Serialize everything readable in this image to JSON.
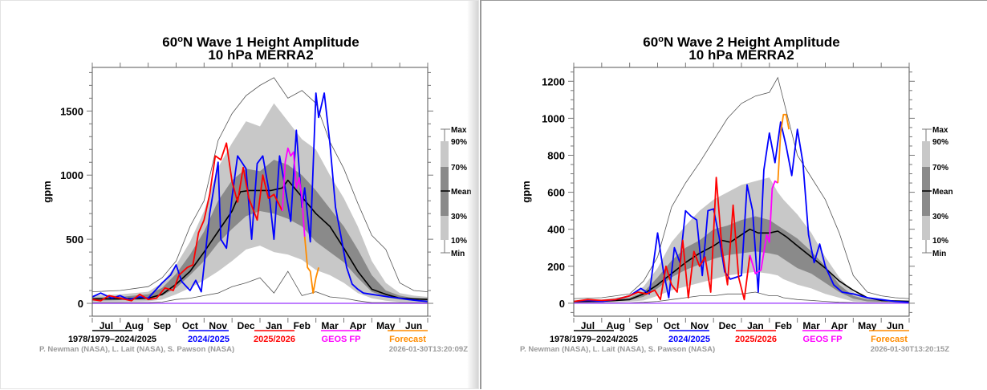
{
  "charts_common": {
    "months": [
      "Jul",
      "Aug",
      "Sep",
      "Oct",
      "Nov",
      "Dec",
      "Jan",
      "Feb",
      "Mar",
      "Apr",
      "May",
      "Jun"
    ],
    "ylabel": "gpm",
    "band_legend": [
      "Max",
      "90%",
      "70%",
      "Mean",
      "30%",
      "10%",
      "Min"
    ],
    "series_legend": [
      {
        "label": "1978/1979–2024/2025",
        "color": "#000000"
      },
      {
        "label": "2024/2025",
        "color": "#0000ff"
      },
      {
        "label": "2025/2026",
        "color": "#ff0000"
      },
      {
        "label": "GEOS FP",
        "color": "#ff00ff"
      },
      {
        "label": "Forecast",
        "color": "#ff8c00"
      }
    ],
    "credit": "P. Newman (NASA), L. Lait (NASA), S. Pawson (NASA)",
    "colors": {
      "band_outer": "#c8c8c8",
      "band_inner": "#8a8a8a",
      "minmax": "#555555",
      "zero_line": "#9933ff"
    }
  },
  "chart_data": [
    {
      "type": "line",
      "title": "60°N Wave 1 Height Amplitude",
      "title_line1_prefix": "60",
      "title_line1_sup": "o",
      "title_line1_rest": "N Wave 1 Height Amplitude",
      "subtitle": "10 hPa   MERRA2",
      "timestamp": "2026-01-30T13:20:09Z",
      "xlabel": "",
      "ylabel": "gpm",
      "xlim": [
        0,
        12
      ],
      "ylim": [
        -100,
        1840
      ],
      "yticks": [
        0,
        500,
        1000,
        1500
      ],
      "yminor_step": 100,
      "x_units": "months since Jul 1",
      "bands": {
        "x": [
          0,
          1,
          2,
          2.5,
          3,
          3.5,
          4,
          4.5,
          5,
          5.5,
          6,
          6.5,
          7,
          7.5,
          8,
          8.5,
          9,
          9.5,
          10,
          10.5,
          11,
          11.5,
          12
        ],
        "max": [
          90,
          100,
          130,
          200,
          330,
          600,
          800,
          1270,
          1480,
          1620,
          1700,
          1760,
          1600,
          1660,
          1560,
          1260,
          1050,
          780,
          530,
          420,
          160,
          100,
          90
        ],
        "p90": [
          60,
          70,
          90,
          160,
          300,
          480,
          720,
          1060,
          1250,
          1420,
          1380,
          1560,
          1420,
          1280,
          1200,
          1000,
          820,
          600,
          330,
          160,
          80,
          60,
          50
        ],
        "p70": [
          45,
          50,
          70,
          120,
          230,
          380,
          560,
          800,
          960,
          1050,
          1030,
          1120,
          1080,
          1000,
          880,
          740,
          600,
          420,
          220,
          100,
          60,
          40,
          40
        ],
        "p30": [
          20,
          25,
          30,
          60,
          120,
          220,
          330,
          470,
          580,
          680,
          720,
          700,
          660,
          600,
          480,
          400,
          320,
          200,
          90,
          50,
          30,
          20,
          20
        ],
        "p10": [
          10,
          10,
          15,
          30,
          70,
          120,
          180,
          250,
          330,
          420,
          450,
          400,
          380,
          340,
          260,
          220,
          160,
          80,
          40,
          20,
          10,
          10,
          10
        ],
        "min": [
          5,
          5,
          5,
          10,
          30,
          40,
          60,
          80,
          130,
          160,
          200,
          80,
          250,
          60,
          90,
          50,
          40,
          20,
          5,
          5,
          5,
          5,
          5
        ]
      },
      "series": [
        {
          "name": "Mean",
          "color": "#000000",
          "x": [
            0,
            1,
            2,
            2.5,
            3,
            3.5,
            4,
            4.5,
            5,
            5.3,
            5.6,
            6,
            6.4,
            6.8,
            7.0,
            7.5,
            8,
            8.5,
            9,
            9.5,
            10,
            10.5,
            11,
            12
          ],
          "values": [
            35,
            35,
            40,
            70,
            150,
            250,
            400,
            560,
            720,
            870,
            880,
            880,
            880,
            900,
            960,
            830,
            700,
            600,
            430,
            250,
            110,
            70,
            40,
            30
          ]
        },
        {
          "name": "2024/2025",
          "color": "#0000ff",
          "x": [
            0,
            0.3,
            0.7,
            1.0,
            1.3,
            1.7,
            2.0,
            2.5,
            2.8,
            3.0,
            3.2,
            3.5,
            3.7,
            3.9,
            4.2,
            4.5,
            4.6,
            4.8,
            5.0,
            5.2,
            5.5,
            5.7,
            5.9,
            6.1,
            6.3,
            6.5,
            6.7,
            6.9,
            7.1,
            7.3,
            7.5,
            7.6,
            7.8,
            8.0,
            8.1,
            8.3,
            8.5,
            8.7,
            8.9,
            9.1,
            9.3,
            9.5,
            9.7,
            10.0,
            10.3,
            10.6,
            11.0,
            11.3,
            11.7,
            12
          ],
          "values": [
            50,
            80,
            40,
            60,
            30,
            50,
            40,
            160,
            220,
            300,
            170,
            100,
            180,
            90,
            700,
            1100,
            500,
            430,
            830,
            1150,
            1050,
            500,
            1090,
            1150,
            900,
            500,
            1150,
            900,
            640,
            1350,
            750,
            900,
            480,
            1640,
            1450,
            1640,
            1250,
            750,
            520,
            280,
            150,
            110,
            80,
            70,
            60,
            50,
            40,
            30,
            20,
            15
          ]
        },
        {
          "name": "2025/2026",
          "color": "#ff0000",
          "x": [
            0,
            0.3,
            0.6,
            1.0,
            1.4,
            1.7,
            2.0,
            2.3,
            2.6,
            2.9,
            3.1,
            3.4,
            3.6,
            3.8,
            4.0,
            4.2,
            4.4,
            4.6,
            4.8,
            5.0,
            5.2,
            5.4,
            5.6,
            5.9,
            6.1,
            6.3,
            6.5,
            6.8
          ],
          "values": [
            30,
            20,
            60,
            40,
            20,
            70,
            30,
            40,
            120,
            100,
            220,
            280,
            300,
            550,
            650,
            850,
            1150,
            1120,
            1250,
            950,
            790,
            1060,
            820,
            650,
            1000,
            820,
            850,
            720
          ]
        },
        {
          "name": "GEOS FP",
          "color": "#ff00ff",
          "x": [
            6.8,
            6.9,
            7.0,
            7.1,
            7.2,
            7.3,
            7.4,
            7.5,
            7.6
          ],
          "values": [
            720,
            1100,
            1210,
            1150,
            1180,
            900,
            980,
            820,
            520
          ]
        },
        {
          "name": "Forecast",
          "color": "#ff8c00",
          "x": [
            7.6,
            7.7,
            7.8,
            7.9,
            8.0,
            8.1
          ],
          "values": [
            520,
            280,
            250,
            80,
            200,
            280
          ]
        }
      ]
    },
    {
      "type": "line",
      "title": "60°N Wave 2 Height Amplitude",
      "title_line1_prefix": "60",
      "title_line1_sup": "o",
      "title_line1_rest": "N Wave 2 Height Amplitude",
      "subtitle": "10 hPa   MERRA2",
      "timestamp": "2026-01-30T13:20:15Z",
      "xlabel": "",
      "ylabel": "gpm",
      "xlim": [
        0,
        12
      ],
      "ylim": [
        -70,
        1275
      ],
      "yticks": [
        0,
        200,
        400,
        600,
        800,
        1000,
        1200
      ],
      "yminor_step": 50,
      "x_units": "months since Jul 1",
      "bands": {
        "x": [
          0,
          1,
          2,
          2.5,
          3,
          3.5,
          4,
          4.5,
          5,
          5.5,
          6,
          6.5,
          7,
          7.3,
          7.5,
          8,
          8.5,
          9,
          9.5,
          10,
          10.5,
          11,
          11.5,
          12
        ],
        "max": [
          25,
          30,
          50,
          120,
          250,
          520,
          650,
          760,
          880,
          1000,
          1080,
          1120,
          1140,
          1220,
          1100,
          800,
          680,
          560,
          380,
          150,
          60,
          40,
          30,
          25
        ],
        "p90": [
          15,
          20,
          40,
          90,
          190,
          330,
          420,
          500,
          560,
          600,
          640,
          660,
          680,
          600,
          560,
          480,
          380,
          250,
          140,
          60,
          30,
          20,
          15,
          15
        ],
        "p70": [
          10,
          15,
          30,
          60,
          140,
          230,
          300,
          340,
          400,
          420,
          450,
          470,
          450,
          420,
          400,
          350,
          280,
          200,
          100,
          40,
          20,
          15,
          10,
          10
        ],
        "p30": [
          5,
          8,
          15,
          35,
          80,
          140,
          180,
          210,
          240,
          260,
          270,
          280,
          270,
          260,
          240,
          190,
          160,
          110,
          60,
          25,
          10,
          8,
          5,
          5
        ],
        "p10": [
          2,
          3,
          8,
          15,
          40,
          70,
          90,
          110,
          130,
          150,
          160,
          170,
          160,
          150,
          130,
          100,
          80,
          50,
          30,
          10,
          5,
          3,
          2,
          2
        ],
        "min": [
          0,
          1,
          2,
          5,
          10,
          20,
          30,
          40,
          40,
          50,
          50,
          60,
          40,
          40,
          30,
          20,
          15,
          10,
          5,
          3,
          2,
          1,
          0,
          0
        ]
      },
      "series": [
        {
          "name": "Mean",
          "color": "#000000",
          "x": [
            0,
            1,
            2,
            2.5,
            3,
            3.5,
            4,
            4.5,
            5,
            5.3,
            5.6,
            6,
            6.3,
            6.6,
            7,
            7.3,
            7.6,
            8,
            8.5,
            9,
            9.5,
            10,
            10.5,
            11,
            12
          ],
          "values": [
            8,
            10,
            20,
            50,
            100,
            160,
            220,
            270,
            310,
            340,
            330,
            370,
            400,
            380,
            380,
            390,
            360,
            310,
            250,
            190,
            120,
            70,
            30,
            15,
            10
          ]
        },
        {
          "name": "2024/2025",
          "color": "#0000ff",
          "x": [
            0,
            0.5,
            1.0,
            1.5,
            2.0,
            2.4,
            2.7,
            3.0,
            3.2,
            3.4,
            3.6,
            3.8,
            4.0,
            4.2,
            4.4,
            4.6,
            4.8,
            5.0,
            5.2,
            5.4,
            5.6,
            5.8,
            6.0,
            6.2,
            6.4,
            6.6,
            6.8,
            7.0,
            7.2,
            7.4,
            7.6,
            7.8,
            8.0,
            8.2,
            8.4,
            8.6,
            8.8,
            9.0,
            9.3,
            9.6,
            10.0,
            10.5,
            11,
            11.5,
            12
          ],
          "values": [
            10,
            15,
            10,
            20,
            40,
            80,
            50,
            380,
            180,
            30,
            300,
            220,
            500,
            470,
            450,
            150,
            500,
            510,
            360,
            170,
            130,
            140,
            150,
            640,
            500,
            60,
            720,
            920,
            760,
            980,
            850,
            690,
            940,
            760,
            370,
            220,
            320,
            200,
            100,
            60,
            50,
            30,
            20,
            10,
            5
          ]
        },
        {
          "name": "2025/2026",
          "color": "#ff0000",
          "x": [
            0,
            0.5,
            1.0,
            1.5,
            2.0,
            2.3,
            2.6,
            2.9,
            3.1,
            3.3,
            3.5,
            3.7,
            3.9,
            4.1,
            4.3,
            4.5,
            4.7,
            4.9,
            5.1,
            5.3,
            5.5,
            5.7,
            5.9,
            6.1,
            6.3
          ],
          "values": [
            10,
            20,
            15,
            20,
            40,
            60,
            50,
            70,
            20,
            200,
            100,
            60,
            340,
            30,
            280,
            200,
            250,
            60,
            680,
            300,
            100,
            530,
            140,
            20,
            260
          ]
        },
        {
          "name": "GEOS FP",
          "color": "#ff00ff",
          "x": [
            6.3,
            6.5,
            6.7,
            6.9,
            7.0,
            7.1,
            7.2,
            7.3
          ],
          "values": [
            260,
            160,
            180,
            370,
            330,
            620,
            660,
            650
          ]
        },
        {
          "name": "Forecast",
          "color": "#ff8c00",
          "x": [
            7.3,
            7.4,
            7.5,
            7.6,
            7.7
          ],
          "values": [
            650,
            920,
            1020,
            1020,
            940
          ]
        }
      ]
    }
  ]
}
